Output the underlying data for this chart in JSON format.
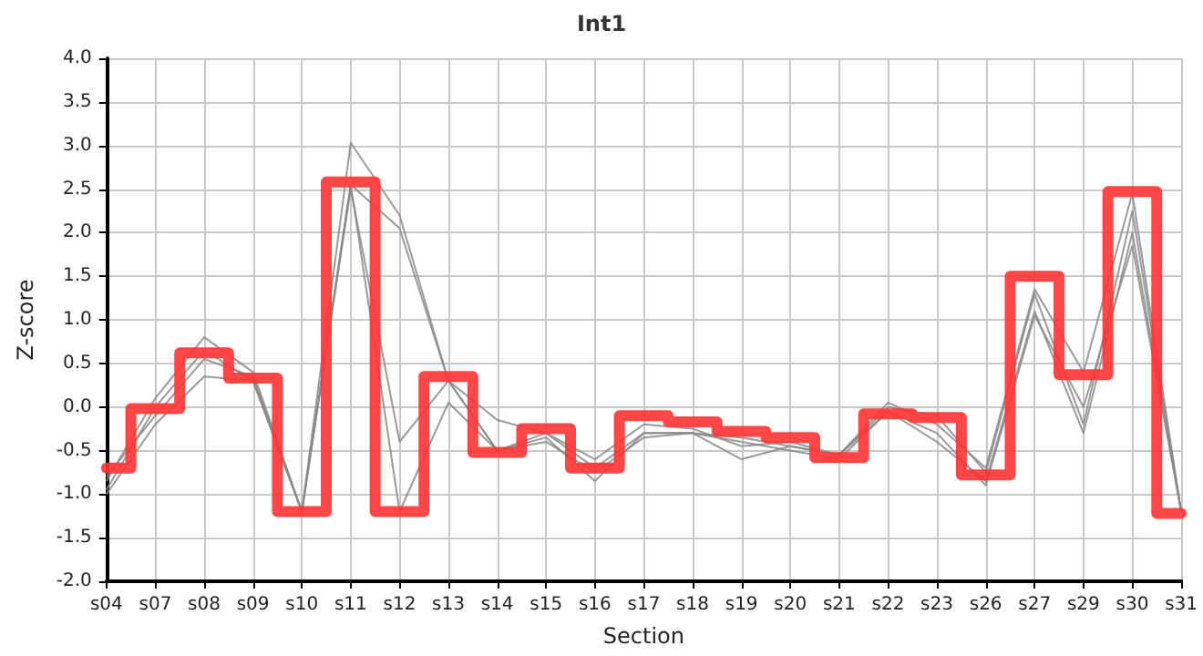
{
  "chart_data": {
    "type": "line",
    "title": "Int1",
    "xlabel": "Section",
    "ylabel": "Z-score",
    "categories": [
      "s04",
      "s07",
      "s08",
      "s09",
      "s10",
      "s11",
      "s12",
      "s13",
      "s14",
      "s15",
      "s16",
      "s17",
      "s18",
      "s19",
      "s20",
      "s21",
      "s22",
      "s23",
      "s26",
      "s27",
      "s29",
      "s30",
      "s31"
    ],
    "series": [
      {
        "color": "#888888",
        "values": [
          -0.85,
          0.1,
          0.8,
          0.4,
          -1.2,
          3.03,
          2.2,
          0.3,
          -0.15,
          -0.3,
          -0.6,
          -0.2,
          -0.25,
          -0.45,
          -0.4,
          -0.55,
          0.05,
          -0.2,
          -0.7,
          1.35,
          0.4,
          2.45,
          -1.2
        ]
      },
      {
        "color": "#888888",
        "values": [
          -0.95,
          0.0,
          0.65,
          0.3,
          -1.2,
          2.55,
          2.05,
          0.3,
          -0.5,
          -0.3,
          -0.7,
          -0.3,
          -0.3,
          -0.35,
          -0.45,
          -0.55,
          0.0,
          -0.1,
          -0.75,
          1.3,
          -0.2,
          2.25,
          -1.2
        ]
      },
      {
        "color": "#888888",
        "values": [
          -0.8,
          -0.1,
          0.55,
          0.35,
          -1.2,
          2.5,
          -0.4,
          0.3,
          -0.5,
          -0.4,
          -0.75,
          -0.35,
          -0.3,
          -0.6,
          -0.45,
          -0.55,
          -0.05,
          -0.4,
          -0.85,
          1.1,
          -0.3,
          2.0,
          -1.2
        ]
      },
      {
        "color": "#888888",
        "values": [
          -1.0,
          -0.2,
          0.35,
          0.3,
          -1.2,
          2.55,
          -1.2,
          0.05,
          -0.5,
          -0.35,
          -0.85,
          -0.3,
          -0.3,
          -0.4,
          -0.5,
          -0.6,
          -0.05,
          -0.3,
          -0.9,
          1.05,
          0.0,
          1.85,
          -1.2
        ]
      },
      {
        "type": "step",
        "color": "#ff3333",
        "values": [
          -0.7,
          -0.02,
          0.62,
          0.33,
          -1.2,
          2.58,
          -1.2,
          0.35,
          -0.52,
          -0.25,
          -0.7,
          -0.1,
          -0.17,
          -0.28,
          -0.35,
          -0.58,
          -0.08,
          -0.12,
          -0.78,
          1.5,
          0.37,
          2.47,
          -1.22
        ]
      }
    ],
    "ylim": [
      -2,
      4
    ],
    "yticks": [
      {
        "value": -2,
        "label": "-2.0"
      },
      {
        "value": -1.5,
        "label": "-1.5"
      },
      {
        "value": -1,
        "label": "-1.0"
      },
      {
        "value": -0.5,
        "label": "-0.5"
      },
      {
        "value": 0,
        "label": "0.0"
      },
      {
        "value": 0.5,
        "label": "0.5"
      },
      {
        "value": 1,
        "label": "1.0"
      },
      {
        "value": 1.5,
        "label": "1.5"
      },
      {
        "value": 2,
        "label": "2.0"
      },
      {
        "value": 2.5,
        "label": "2.5"
      },
      {
        "value": 3,
        "label": "3.0"
      },
      {
        "value": 3.5,
        "label": "3.5"
      },
      {
        "value": 4,
        "label": "4.0"
      }
    ],
    "grid": true,
    "marker": "none",
    "line_style": "solid"
  }
}
